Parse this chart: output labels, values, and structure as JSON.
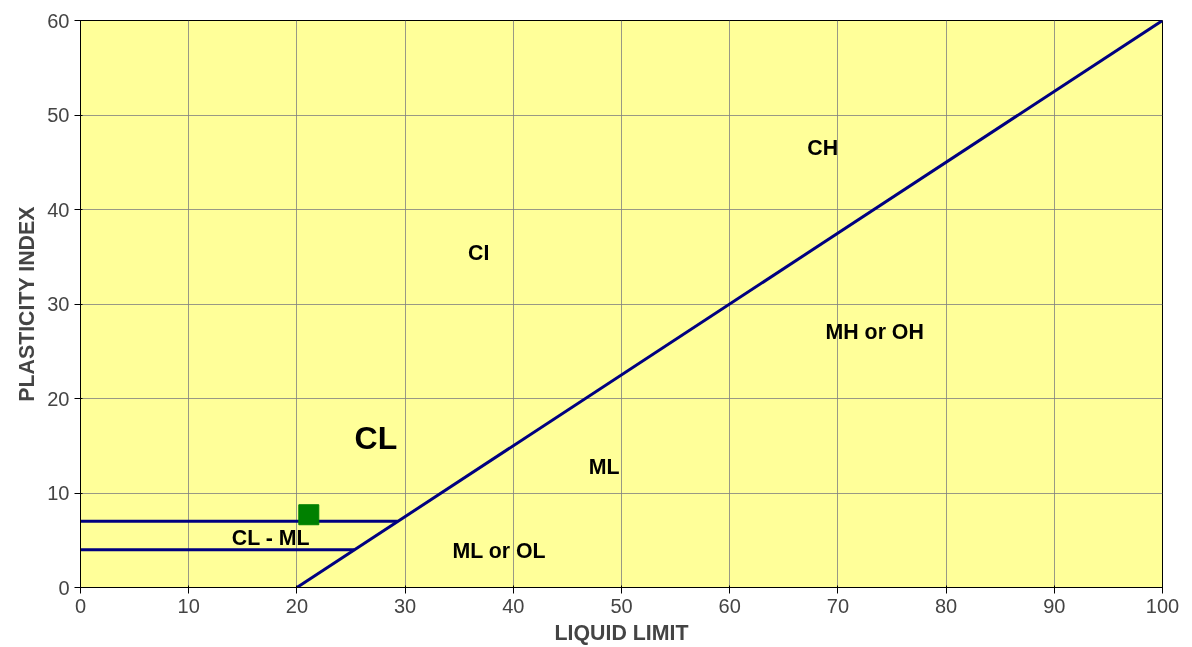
{
  "chart_data": {
    "type": "line",
    "xlabel": "LIQUID LIMIT",
    "ylabel": "PLASTICITY INDEX",
    "xlim": [
      0,
      100
    ],
    "ylim": [
      0,
      60
    ],
    "xticks": [
      0,
      10,
      20,
      30,
      40,
      50,
      60,
      70,
      80,
      90,
      100
    ],
    "yticks": [
      0,
      10,
      20,
      30,
      40,
      50,
      60
    ],
    "grid": true,
    "line_style": "solid",
    "series": [
      {
        "color": "#000080",
        "x": [
          20,
          100
        ],
        "values": [
          0,
          60
        ],
        "marker": "none"
      },
      {
        "color": "#000080",
        "x": [
          0,
          29.3
        ],
        "values": [
          7,
          7
        ],
        "marker": "none"
      },
      {
        "color": "#000080",
        "x": [
          0,
          25.3
        ],
        "values": [
          4,
          4
        ],
        "marker": "none"
      },
      {
        "type": "scatter",
        "color": "#008000",
        "x": [
          21.1
        ],
        "values": [
          7.7
        ],
        "marker": "square"
      }
    ],
    "annotations": [
      "CH",
      "CI",
      "MH or OH",
      "CL",
      "ML",
      "CL - ML",
      "ML or OL"
    ]
  }
}
